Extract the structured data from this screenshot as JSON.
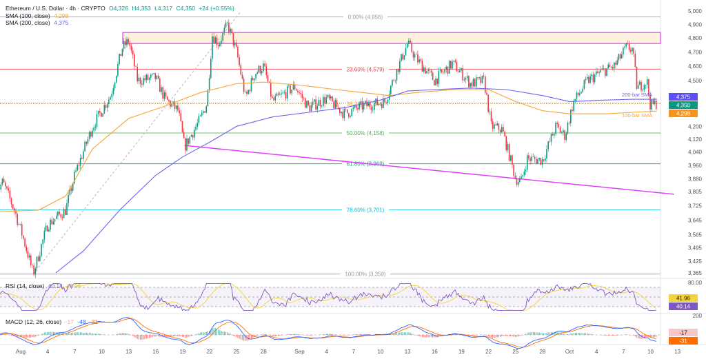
{
  "header": {
    "symbol": "Ethereum / U.S. Dollar · 4h · CRYPTO",
    "o": "O4,326",
    "h": "H4,353",
    "l": "L4,317",
    "c": "C4,350",
    "chg": "+24 (+0.55%)"
  },
  "indicators": {
    "sma100_label": "SMA (100, close)",
    "sma100_value": "4,298",
    "sma200_label": "SMA (200, close)",
    "sma200_value": "4,375",
    "rsi_label": "RSI (14, close)",
    "rsi_value": "40.14",
    "rsi_ma_value": "41.96",
    "macd_label": "MACD (12, 26, close)",
    "macd_hist": "-17",
    "macd_line": "-48",
    "macd_signal": "-31"
  },
  "colors": {
    "up": "#089981",
    "down": "#f23645",
    "sma100": "#f7a532",
    "sma200": "#6b62f2",
    "trend": "#e040fb",
    "rsi": "#7e57c2",
    "rsi_ma": "#f5d33d",
    "macd": "#2962ff",
    "signal": "#ff6d00"
  },
  "chart_data": {
    "type": "candlestick",
    "scale": "log",
    "ylim": [
      3340,
      5010
    ],
    "y_ticks": [
      "5,000",
      "4,900",
      "4,800",
      "4,700",
      "4,600",
      "4,500",
      "4,200",
      "4,120",
      "4,040",
      "3,960",
      "3,880",
      "3,805",
      "3,725",
      "3,645",
      "3,565",
      "3,495",
      "3,425",
      "3,365"
    ],
    "y_tick_values": [
      5000,
      4900,
      4800,
      4700,
      4600,
      4500,
      4200,
      4120,
      4040,
      3960,
      3880,
      3805,
      3725,
      3645,
      3565,
      3495,
      3425,
      3365
    ],
    "x_ticks": [
      "Aug",
      "4",
      "7",
      "10",
      "13",
      "16",
      "19",
      "22",
      "25",
      "28",
      "Sep",
      "4",
      "7",
      "10",
      "13",
      "16",
      "19",
      "22",
      "25",
      "28",
      "Oct",
      "4",
      "7",
      "10",
      "13"
    ],
    "x_tick_days": [
      1,
      4,
      7,
      10,
      13,
      16,
      19,
      22,
      25,
      28,
      32,
      35,
      38,
      41,
      44,
      47,
      50,
      53,
      56,
      59,
      62,
      65,
      68,
      71,
      74
    ],
    "price_path": [
      [
        -1.7,
        3800
      ],
      [
        -1,
        3860
      ],
      [
        0.3,
        3700
      ],
      [
        1.2,
        3560
      ],
      [
        2.4,
        3360
      ],
      [
        4,
        3620
      ],
      [
        6,
        3700
      ],
      [
        7,
        3900
      ],
      [
        9,
        4200
      ],
      [
        11,
        4400
      ],
      [
        12.3,
        4730
      ],
      [
        13,
        4780
      ],
      [
        14,
        4500
      ],
      [
        16,
        4520
      ],
      [
        17,
        4380
      ],
      [
        18.5,
        4300
      ],
      [
        19.2,
        4070
      ],
      [
        21,
        4250
      ],
      [
        21.7,
        4350
      ],
      [
        22.3,
        4820
      ],
      [
        23,
        4760
      ],
      [
        24,
        4900
      ],
      [
        25,
        4700
      ],
      [
        26,
        4380
      ],
      [
        27,
        4550
      ],
      [
        28,
        4600
      ],
      [
        29,
        4360
      ],
      [
        30,
        4400
      ],
      [
        31.5,
        4460
      ],
      [
        33,
        4320
      ],
      [
        35,
        4380
      ],
      [
        37,
        4280
      ],
      [
        39,
        4330
      ],
      [
        41.5,
        4360
      ],
      [
        43,
        4600
      ],
      [
        44,
        4760
      ],
      [
        45,
        4650
      ],
      [
        47,
        4500
      ],
      [
        49,
        4620
      ],
      [
        51,
        4480
      ],
      [
        52.5,
        4500
      ],
      [
        53.3,
        4200
      ],
      [
        54.5,
        4180
      ],
      [
        56,
        3880
      ],
      [
        56.6,
        3860
      ],
      [
        57.3,
        4000
      ],
      [
        59,
        3990
      ],
      [
        60.5,
        4200
      ],
      [
        61.5,
        4140
      ],
      [
        62.4,
        4350
      ],
      [
        64,
        4500
      ],
      [
        65.5,
        4560
      ],
      [
        67,
        4600
      ],
      [
        68.3,
        4730
      ],
      [
        69,
        4720
      ],
      [
        69.5,
        4450
      ],
      [
        70.6,
        4500
      ],
      [
        71,
        4330
      ],
      [
        71.7,
        4350
      ]
    ],
    "sma100": [
      [
        -2,
        3690
      ],
      [
        3,
        3700
      ],
      [
        6,
        3780
      ],
      [
        9,
        4060
      ],
      [
        13,
        4250
      ],
      [
        17,
        4330
      ],
      [
        21,
        4420
      ],
      [
        25,
        4480
      ],
      [
        28,
        4490
      ],
      [
        32,
        4470
      ],
      [
        36,
        4440
      ],
      [
        39,
        4420
      ],
      [
        42,
        4400
      ],
      [
        45,
        4420
      ],
      [
        49,
        4440
      ],
      [
        53,
        4440
      ],
      [
        56,
        4360
      ],
      [
        59,
        4300
      ],
      [
        62,
        4280
      ],
      [
        66,
        4280
      ],
      [
        69,
        4290
      ],
      [
        71.7,
        4298
      ]
    ],
    "sma200": [
      [
        4.9,
        3365
      ],
      [
        8,
        3480
      ],
      [
        12,
        3700
      ],
      [
        16,
        3900
      ],
      [
        19,
        4010
      ],
      [
        22,
        4100
      ],
      [
        25,
        4200
      ],
      [
        29,
        4260
      ],
      [
        33,
        4290
      ],
      [
        37,
        4320
      ],
      [
        41,
        4370
      ],
      [
        44,
        4430
      ],
      [
        47,
        4440
      ],
      [
        51,
        4450
      ],
      [
        55,
        4440
      ],
      [
        59,
        4400
      ],
      [
        62,
        4360
      ],
      [
        66,
        4370
      ],
      [
        69,
        4375
      ],
      [
        71.7,
        4375
      ]
    ],
    "fib": [
      {
        "label": "0.00% (4,956)",
        "price": 4956,
        "color": "#9598a1"
      },
      {
        "label": "23.60% (4,579)",
        "price": 4579,
        "color": "#f23645"
      },
      {
        "label": "38.20% (4,346)",
        "price": 4346,
        "color": "#e8a73a"
      },
      {
        "label": "50.00% (4,158)",
        "price": 4158,
        "color": "#4caf50"
      },
      {
        "label": "61.80% (3,969)",
        "price": 3969,
        "color": "#089981"
      },
      {
        "label": "78.60% (3,701)",
        "price": 3701,
        "color": "#00bcd4"
      },
      {
        "label": "100.00% (3,359)",
        "price": 3359,
        "color": "#9598a1"
      }
    ],
    "resistance_zone": [
      4760,
      4840
    ],
    "trendline": [
      [
        19.2,
        4080
      ],
      [
        73.6,
        3790
      ]
    ],
    "annotations": [
      "200-bar SMA",
      "100-bar SMA"
    ],
    "price_tags": [
      {
        "value": "4,375",
        "color": "#5b4ff5"
      },
      {
        "value": "4,350",
        "color": "#089981"
      },
      {
        "value": "4,298",
        "color": "#f7931a"
      }
    ],
    "rsi": {
      "levels": [
        70,
        50,
        30
      ],
      "tick": "80.00",
      "tags": [
        {
          "value": "41.96",
          "color": "#f5d33d",
          "text": "#131722"
        },
        {
          "value": "40.14",
          "color": "#7e57c2",
          "text": "#fff"
        }
      ]
    },
    "macd": {
      "tick": "200",
      "tags": [
        {
          "value": "-17",
          "color": "#f8c6c6",
          "text": "#131722"
        },
        {
          "value": "-31",
          "color": "#ff6d00",
          "text": "#fff"
        }
      ]
    }
  }
}
